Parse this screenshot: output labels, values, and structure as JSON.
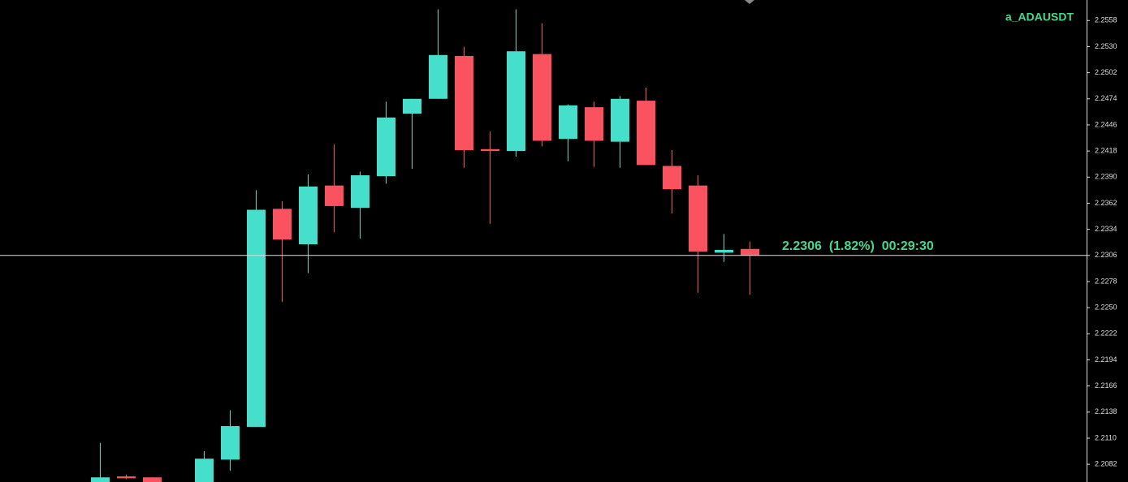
{
  "chart_data": {
    "type": "candlestick",
    "title": "a_ADAUSDT",
    "categories": [
      null,
      null,
      null,
      null,
      null,
      null,
      null,
      null,
      null,
      null,
      null,
      null,
      null,
      null,
      null,
      null,
      null,
      null,
      null,
      null,
      null,
      null,
      null,
      null,
      null,
      null
    ],
    "open": [
      2.2062,
      2.2069,
      2.2068,
      null,
      2.2055,
      2.2087,
      2.2122,
      2.2356,
      2.2318,
      2.2381,
      2.2357,
      2.2391,
      2.2458,
      2.2474,
      2.252,
      2.242,
      2.2418,
      2.2522,
      2.2431,
      2.2465,
      2.2428,
      2.2472,
      2.2402,
      2.2381,
      2.2309,
      2.2313
    ],
    "high": [
      2.2105,
      2.2071,
      2.2068,
      null,
      2.2096,
      2.214,
      2.2376,
      2.2364,
      2.2393,
      2.2425,
      2.2396,
      2.2471,
      2.2474,
      2.257,
      2.253,
      2.2439,
      2.257,
      2.2555,
      2.2468,
      2.2471,
      2.2477,
      2.2486,
      2.2419,
      2.2392,
      2.2329,
      2.2321
    ],
    "low": [
      2.2058,
      2.2066,
      2.2055,
      null,
      2.205,
      2.2075,
      2.2122,
      2.2256,
      2.2287,
      2.2331,
      2.2324,
      2.2383,
      2.2399,
      2.2474,
      2.24,
      2.234,
      2.2412,
      2.2423,
      2.2407,
      2.2401,
      2.24,
      2.2403,
      2.2351,
      2.2266,
      2.2299,
      2.2264
    ],
    "close": [
      2.2068,
      2.2067,
      2.206,
      null,
      2.2088,
      2.2123,
      2.2355,
      2.2323,
      2.238,
      2.2359,
      2.2392,
      2.2454,
      2.2474,
      2.2521,
      2.2419,
      2.2418,
      2.2525,
      2.2429,
      2.2467,
      2.2429,
      2.2474,
      2.2403,
      2.2377,
      2.231,
      2.2312,
      2.2306
    ],
    "up_color": "#46dfcc",
    "down_color": "#fb5260",
    "current_price": 2.2306,
    "current_price_label": "2.2306  (1.82%)  00:29:30",
    "ylim": [
      2.2063,
      2.258
    ],
    "yticks": [
      {
        "value": 2.2082,
        "label": "2.2082"
      },
      {
        "value": 2.211,
        "label": "2.2110"
      },
      {
        "value": 2.2138,
        "label": "2.2138"
      },
      {
        "value": 2.2166,
        "label": "2.2166"
      },
      {
        "value": 2.2194,
        "label": "2.2194"
      },
      {
        "value": 2.2222,
        "label": "2.2222"
      },
      {
        "value": 2.225,
        "label": "2.2250"
      },
      {
        "value": 2.2278,
        "label": "2.2278"
      },
      {
        "value": 2.2306,
        "label": "2.2306"
      },
      {
        "value": 2.2334,
        "label": "2.2334"
      },
      {
        "value": 2.2362,
        "label": "2.2362"
      },
      {
        "value": 2.239,
        "label": "2.2390"
      },
      {
        "value": 2.2418,
        "label": "2.2418"
      },
      {
        "value": 2.2446,
        "label": "2.2446"
      },
      {
        "value": 2.2474,
        "label": "2.2474"
      },
      {
        "value": 2.2502,
        "label": "2.2502"
      },
      {
        "value": 2.253,
        "label": "2.2530"
      },
      {
        "value": 2.2558,
        "label": "2.2558"
      }
    ]
  }
}
